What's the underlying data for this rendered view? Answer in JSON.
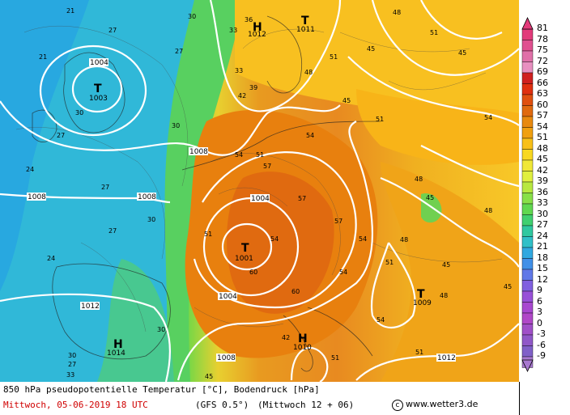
{
  "footer": {
    "title": "850 hPa pseudopotentielle Temperatur [°C], Bodendruck [hPa]",
    "date": "Mittwoch, 05-06-2019  18 UTC",
    "model": "(GFS 0.5°)",
    "run": "(Mittwoch 12 + 06)",
    "copyright_symbol": "c",
    "site": "www.wetter3.de"
  },
  "legend": {
    "labels": [
      "81",
      "78",
      "75",
      "72",
      "69",
      "66",
      "63",
      "60",
      "57",
      "54",
      "51",
      "48",
      "45",
      "42",
      "39",
      "36",
      "33",
      "30",
      "27",
      "24",
      "21",
      "18",
      "15",
      "12",
      "9",
      "6",
      "3",
      "0",
      "-3",
      "-6",
      "-9"
    ],
    "colors": [
      "#e23a7a",
      "#e05090",
      "#e070a8",
      "#e890c0",
      "#d02020",
      "#e03010",
      "#e05010",
      "#e06a10",
      "#e88a10",
      "#f0a010",
      "#f8c018",
      "#f8d820",
      "#f0e838",
      "#e0f040",
      "#b8e840",
      "#88e048",
      "#60d850",
      "#40d070",
      "#30c8a0",
      "#30c0c8",
      "#30a8e0",
      "#4090e8",
      "#6078e8",
      "#8060e0",
      "#9850d8",
      "#a848d0",
      "#b048c8",
      "#a050c8",
      "#9058c8",
      "#8060c8",
      "#a878d0"
    ]
  },
  "map": {
    "pressure_labels": [
      {
        "text": "1004",
        "kind": "isobar"
      },
      {
        "text": "1003",
        "kind": "low"
      },
      {
        "text": "1012",
        "kind": "high"
      },
      {
        "text": "1011",
        "kind": "low"
      },
      {
        "text": "1008",
        "kind": "isobar"
      },
      {
        "text": "1008",
        "kind": "isobar"
      },
      {
        "text": "1008",
        "kind": "isobar"
      },
      {
        "text": "1004",
        "kind": "isobar"
      },
      {
        "text": "1001",
        "kind": "low"
      },
      {
        "text": "1004",
        "kind": "isobar"
      },
      {
        "text": "1012",
        "kind": "isobar"
      },
      {
        "text": "1014",
        "kind": "high"
      },
      {
        "text": "1008",
        "kind": "isobar"
      },
      {
        "text": "1010",
        "kind": "high"
      },
      {
        "text": "1009",
        "kind": "low"
      },
      {
        "text": "1012",
        "kind": "isobar"
      }
    ],
    "theta_labels": [
      "21",
      "27",
      "21",
      "30",
      "27",
      "24",
      "27",
      "30",
      "27",
      "24",
      "30",
      "27",
      "30",
      "33",
      "33",
      "36",
      "39",
      "42",
      "45",
      "48",
      "51",
      "54",
      "57",
      "60",
      "54",
      "51",
      "48",
      "45",
      "51",
      "54",
      "57",
      "60",
      "54",
      "51",
      "48",
      "57",
      "54",
      "48",
      "45",
      "51",
      "48",
      "54",
      "51",
      "45",
      "51",
      "54",
      "45",
      "48",
      "45",
      "30",
      "30",
      "27",
      "33",
      "42",
      "45",
      "51"
    ]
  }
}
